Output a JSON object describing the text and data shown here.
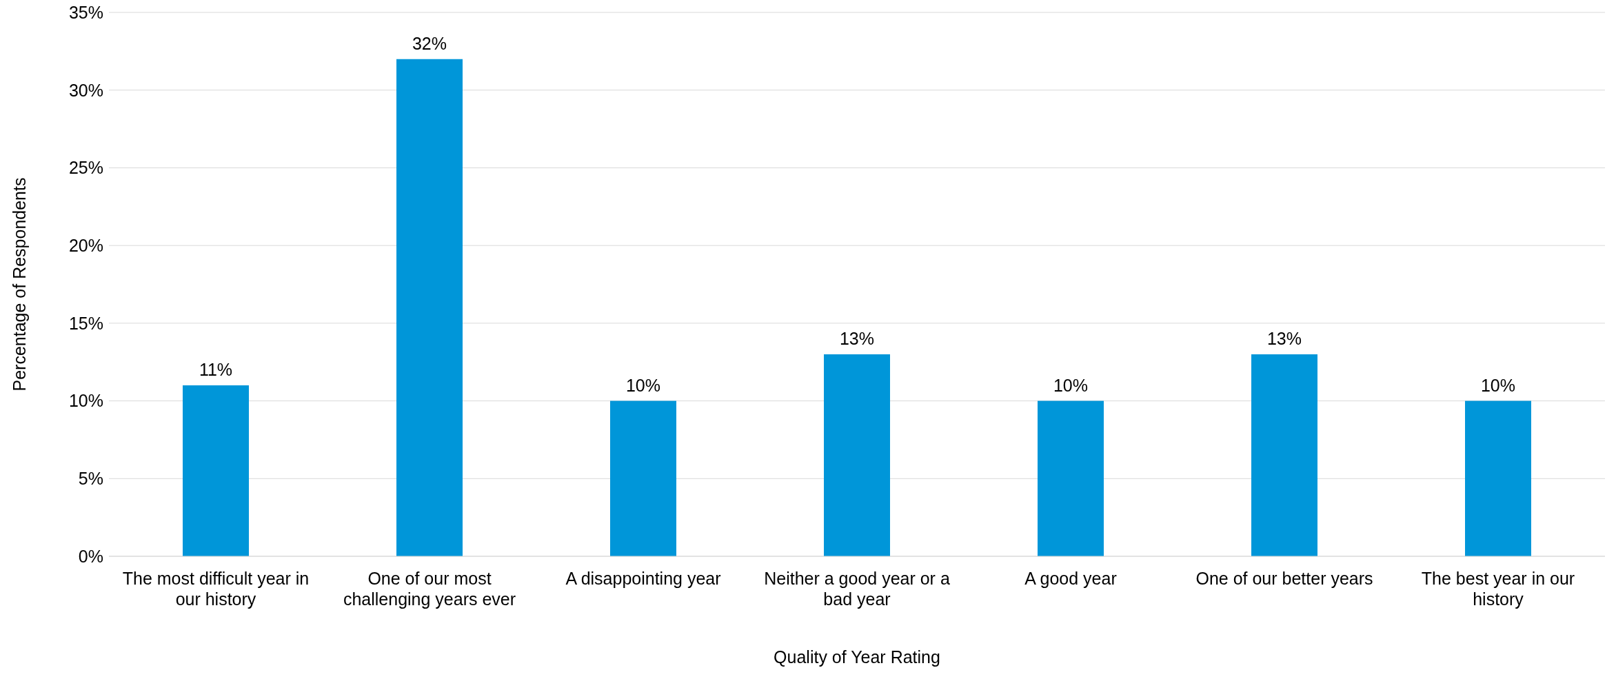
{
  "chart_data": {
    "type": "bar",
    "xlabel": "Quality of Year Rating",
    "ylabel": "Percentage of Respondents",
    "categories": [
      "The most difficult year in our history",
      "One of our most challenging years ever",
      "A disappointing year",
      "Neither a good year or a bad year",
      "A good year",
      "One of our better years",
      "The best year in our history"
    ],
    "values": [
      11,
      32,
      10,
      13,
      10,
      13,
      10
    ],
    "value_labels": [
      "11%",
      "32%",
      "10%",
      "13%",
      "10%",
      "13%",
      "10%"
    ],
    "color": "#0096d9",
    "ylim": [
      0,
      35
    ],
    "yticks": [
      {
        "value": 0,
        "label": "0%"
      },
      {
        "value": 5,
        "label": "5%"
      },
      {
        "value": 10,
        "label": "10%"
      },
      {
        "value": 15,
        "label": "15%"
      },
      {
        "value": 20,
        "label": "20%"
      },
      {
        "value": 25,
        "label": "25%"
      },
      {
        "value": 30,
        "label": "30%"
      },
      {
        "value": 35,
        "label": "35%"
      }
    ],
    "grid": "y",
    "legend": false
  }
}
